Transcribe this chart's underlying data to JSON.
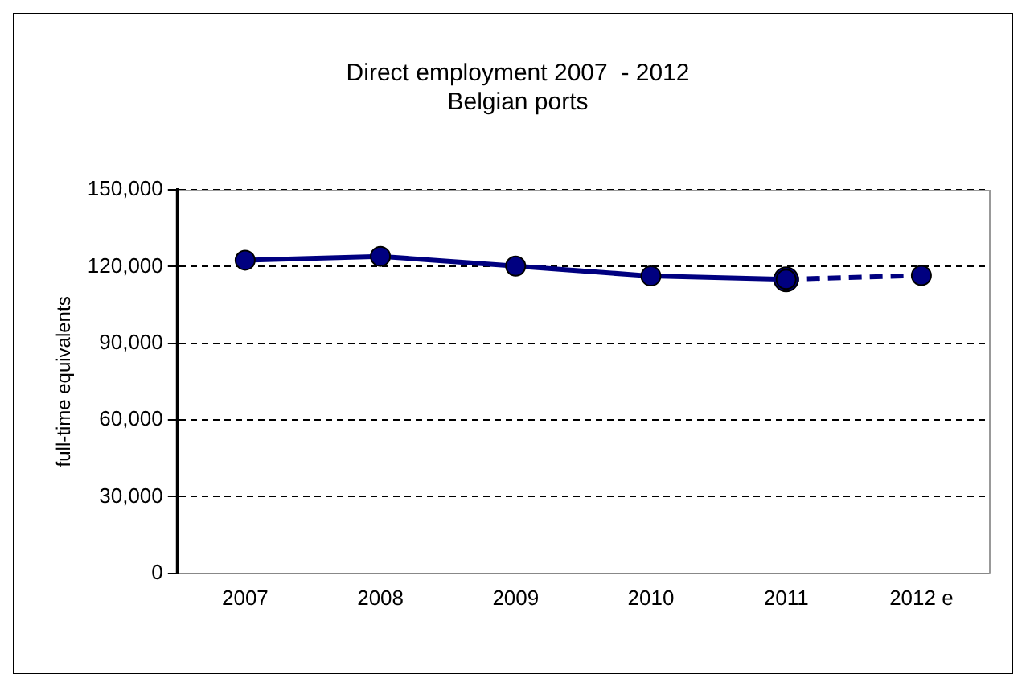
{
  "chart_data": {
    "type": "line",
    "title": "Direct employment 2007  - 2012\nBelgian ports",
    "ylabel": "full-time equivalents",
    "categories": [
      "2007",
      "2008",
      "2009",
      "2010",
      "2011",
      "2012 e"
    ],
    "series": [
      {
        "color": "#000080",
        "values": [
          122500,
          124000,
          120200,
          116300,
          115000,
          null
        ],
        "line_style": "solid"
      },
      {
        "color": "#000080",
        "values": [
          null,
          null,
          null,
          null,
          115000,
          116500
        ],
        "line_style": "dashed"
      }
    ],
    "ylim": [
      0,
      150000
    ],
    "yticks": [
      {
        "value": 0,
        "label": "0"
      },
      {
        "value": 30000,
        "label": "30,000"
      },
      {
        "value": 60000,
        "label": "60,000"
      },
      {
        "value": 90000,
        "label": "90,000"
      },
      {
        "value": 120000,
        "label": "120,000"
      },
      {
        "value": 150000,
        "label": "150,000"
      }
    ],
    "grid": "y",
    "legend": false,
    "marker": "circle"
  }
}
